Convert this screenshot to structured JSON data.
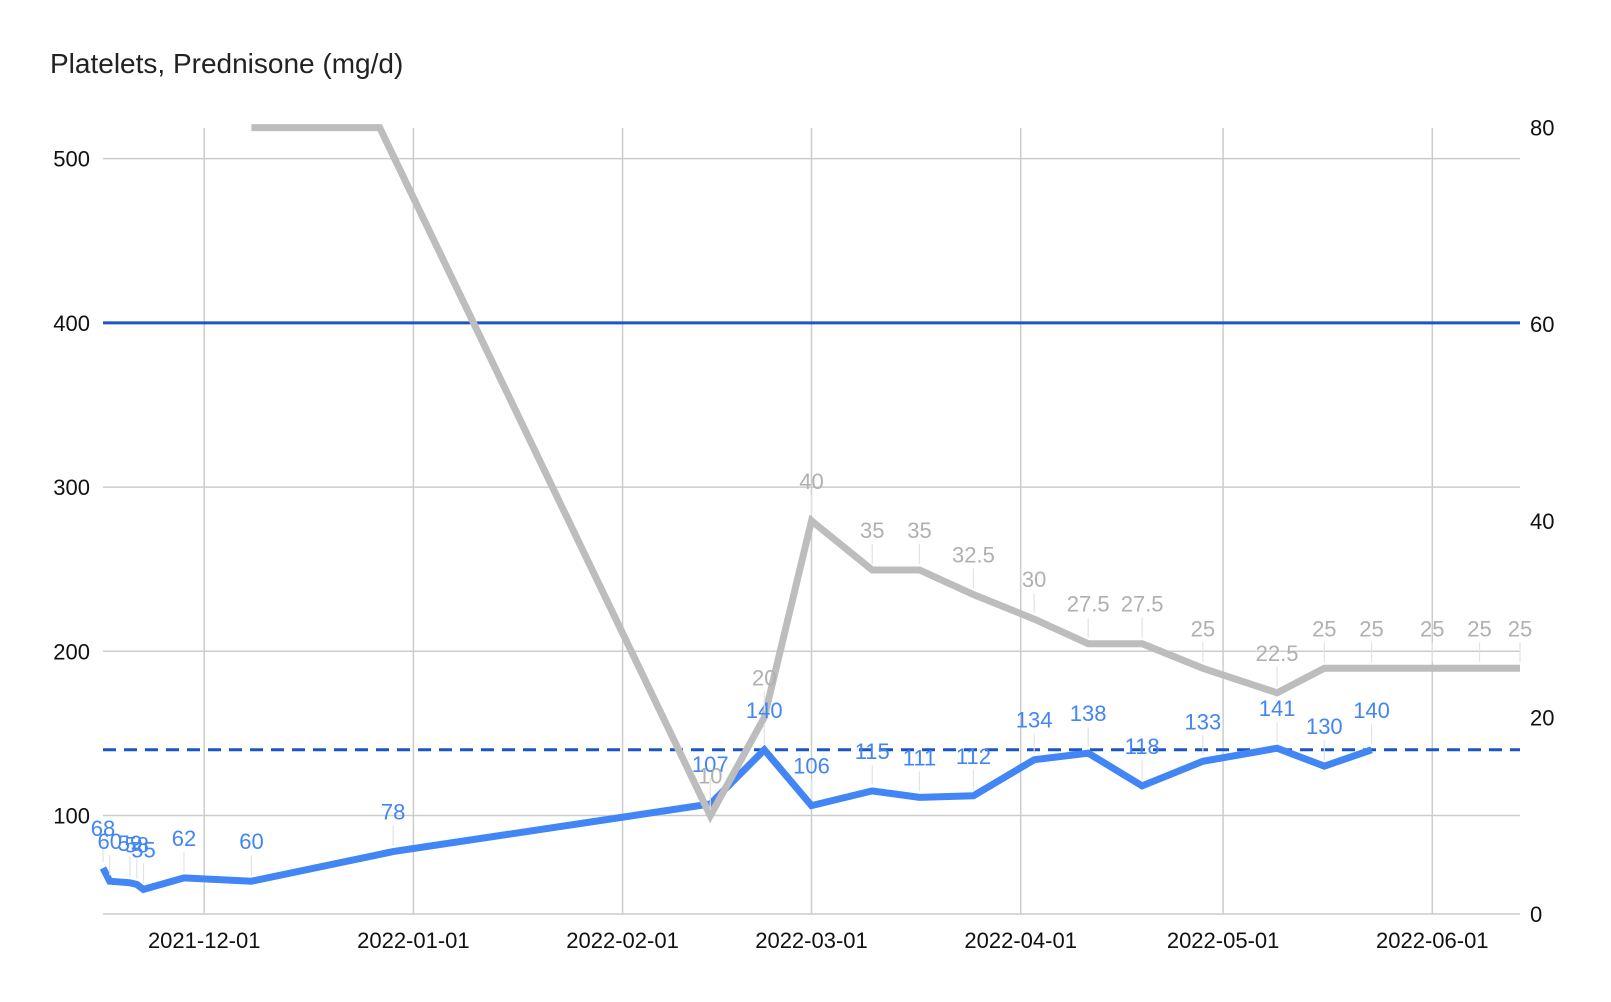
{
  "chart_data": {
    "type": "line",
    "title": "Platelets, Prednisone (mg/d)",
    "x_ticks": [
      "2021-12-01",
      "2022-01-01",
      "2022-02-01",
      "2022-03-01",
      "2022-04-01",
      "2022-05-01",
      "2022-06-01"
    ],
    "xlim": [
      "2021-11-16",
      "2022-06-14"
    ],
    "y_left": {
      "ylim": [
        40,
        500
      ],
      "ticks": [
        100,
        200,
        300,
        400,
        500
      ]
    },
    "y_right": {
      "ylim": [
        0,
        80
      ],
      "ticks": [
        0,
        20,
        40,
        60,
        80
      ]
    },
    "grid": true,
    "legend": "none",
    "colors": {
      "platelets": "#4285f4",
      "platelets_label": "#4285f4",
      "prednisone": "#bdbdbd",
      "prednisone_label": "#b0b0b0",
      "reference": "#1a56c8",
      "grid": "#cccccc",
      "tick": "#111111"
    },
    "series": [
      {
        "key": "platelets",
        "axis": "left",
        "show_labels": true,
        "points": [
          {
            "x": "2021-11-16",
            "y": 68,
            "label": "68"
          },
          {
            "x": "2021-11-17",
            "y": 60,
            "label": "60"
          },
          {
            "x": "2021-11-20",
            "y": 59,
            "label": "59"
          },
          {
            "x": "2021-11-21",
            "y": 58,
            "label": "58"
          },
          {
            "x": "2021-11-22",
            "y": 55,
            "label": "55"
          },
          {
            "x": "2021-11-28",
            "y": 62,
            "label": "62"
          },
          {
            "x": "2021-12-08",
            "y": 60,
            "label": "60"
          },
          {
            "x": "2021-12-29",
            "y": 78,
            "label": "78"
          },
          {
            "x": "2022-02-14",
            "y": 107,
            "label": "107"
          },
          {
            "x": "2022-02-22",
            "y": 140,
            "label": "140"
          },
          {
            "x": "2022-03-01",
            "y": 106,
            "label": "106"
          },
          {
            "x": "2022-03-10",
            "y": 115,
            "label": "115"
          },
          {
            "x": "2022-03-17",
            "y": 111,
            "label": "111"
          },
          {
            "x": "2022-03-25",
            "y": 112,
            "label": "112"
          },
          {
            "x": "2022-04-03",
            "y": 134,
            "label": "134"
          },
          {
            "x": "2022-04-11",
            "y": 138,
            "label": "138"
          },
          {
            "x": "2022-04-19",
            "y": 118,
            "label": "118"
          },
          {
            "x": "2022-04-28",
            "y": 133,
            "label": "133"
          },
          {
            "x": "2022-05-09",
            "y": 141,
            "label": "141"
          },
          {
            "x": "2022-05-16",
            "y": 130,
            "label": "130"
          },
          {
            "x": "2022-05-23",
            "y": 140,
            "label": "140"
          }
        ]
      },
      {
        "key": "prednisone",
        "axis": "right",
        "show_labels": true,
        "points": [
          {
            "x": "2021-12-08",
            "y": 80,
            "label": ""
          },
          {
            "x": "2021-12-27",
            "y": 80,
            "label": ""
          },
          {
            "x": "2022-02-14",
            "y": 10,
            "label": "10"
          },
          {
            "x": "2022-02-22",
            "y": 20,
            "label": "20"
          },
          {
            "x": "2022-03-01",
            "y": 40,
            "label": "40"
          },
          {
            "x": "2022-03-10",
            "y": 35,
            "label": "35"
          },
          {
            "x": "2022-03-17",
            "y": 35,
            "label": "35"
          },
          {
            "x": "2022-03-25",
            "y": 32.5,
            "label": "32.5"
          },
          {
            "x": "2022-04-03",
            "y": 30,
            "label": "30"
          },
          {
            "x": "2022-04-11",
            "y": 27.5,
            "label": "27.5"
          },
          {
            "x": "2022-04-19",
            "y": 27.5,
            "label": "27.5"
          },
          {
            "x": "2022-04-28",
            "y": 25,
            "label": "25"
          },
          {
            "x": "2022-05-09",
            "y": 22.5,
            "label": "22.5"
          },
          {
            "x": "2022-05-16",
            "y": 25,
            "label": "25"
          },
          {
            "x": "2022-05-23",
            "y": 25,
            "label": "25"
          },
          {
            "x": "2022-06-01",
            "y": 25,
            "label": "25"
          },
          {
            "x": "2022-06-08",
            "y": 25,
            "label": "25"
          },
          {
            "x": "2022-06-14",
            "y": 25,
            "label": "25"
          }
        ]
      }
    ],
    "reference_lines": [
      {
        "axis": "left",
        "y": 400,
        "style": "solid"
      },
      {
        "axis": "left",
        "y": 140,
        "style": "dashed"
      }
    ]
  }
}
